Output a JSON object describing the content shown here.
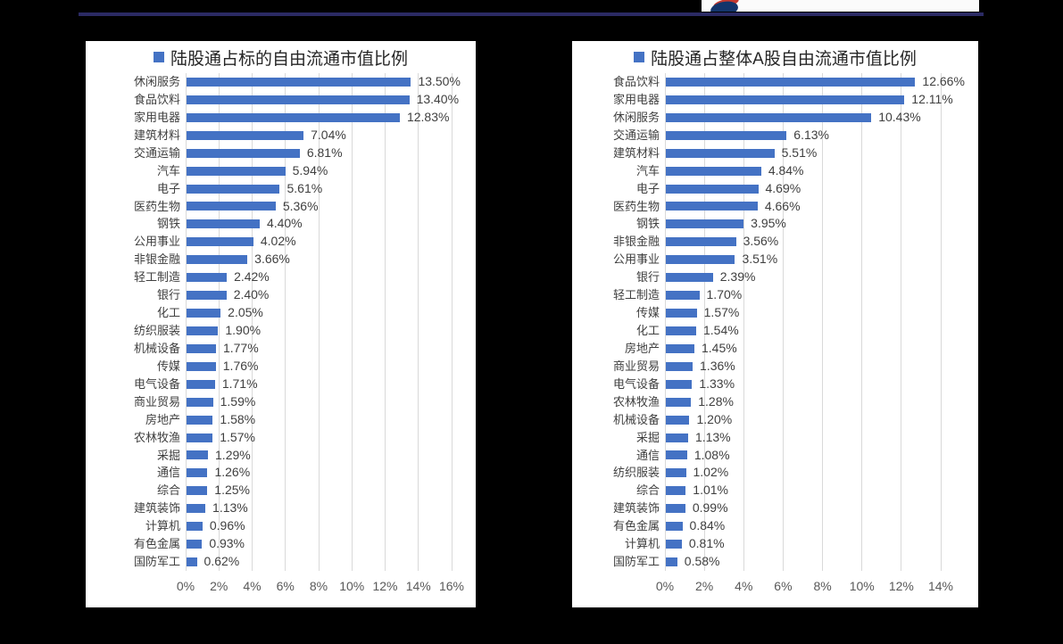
{
  "page": {
    "background_color": "#000000",
    "top_rule_color": "#2b2a64",
    "logo_colors": {
      "navy": "#14356b",
      "red": "#c5392f"
    }
  },
  "chart_data": [
    {
      "type": "bar",
      "orientation": "horizontal",
      "title": "陆股通占标的自由流通市值比例",
      "bar_color": "#4472c4",
      "grid": true,
      "legend_position": "top",
      "xlim": [
        0,
        16
      ],
      "x_ticks": [
        "0%",
        "2%",
        "4%",
        "6%",
        "8%",
        "10%",
        "12%",
        "14%",
        "16%"
      ],
      "categories": [
        "休闲服务",
        "食品饮料",
        "家用电器",
        "建筑材料",
        "交通运输",
        "汽车",
        "电子",
        "医药生物",
        "钢铁",
        "公用事业",
        "非银金融",
        "轻工制造",
        "银行",
        "化工",
        "纺织服装",
        "机械设备",
        "传媒",
        "电气设备",
        "商业贸易",
        "房地产",
        "农林牧渔",
        "采掘",
        "通信",
        "综合",
        "建筑装饰",
        "计算机",
        "有色金属",
        "国防军工"
      ],
      "values": [
        13.5,
        13.4,
        12.83,
        7.04,
        6.81,
        5.94,
        5.61,
        5.36,
        4.4,
        4.02,
        3.66,
        2.42,
        2.4,
        2.05,
        1.9,
        1.77,
        1.76,
        1.71,
        1.59,
        1.58,
        1.57,
        1.29,
        1.26,
        1.25,
        1.13,
        0.96,
        0.93,
        0.62
      ],
      "value_labels": [
        "13.50%",
        "13.40%",
        "12.83%",
        "7.04%",
        "6.81%",
        "5.94%",
        "5.61%",
        "5.36%",
        "4.40%",
        "4.02%",
        "3.66%",
        "2.42%",
        "2.40%",
        "2.05%",
        "1.90%",
        "1.77%",
        "1.76%",
        "1.71%",
        "1.59%",
        "1.58%",
        "1.57%",
        "1.29%",
        "1.26%",
        "1.25%",
        "1.13%",
        "0.96%",
        "0.93%",
        "0.62%"
      ]
    },
    {
      "type": "bar",
      "orientation": "horizontal",
      "title": "陆股通占整体A股自由流通市值比例",
      "bar_color": "#4472c4",
      "grid": true,
      "legend_position": "top",
      "xlim": [
        0,
        14
      ],
      "x_ticks": [
        "0%",
        "2%",
        "4%",
        "6%",
        "8%",
        "10%",
        "12%",
        "14%"
      ],
      "categories": [
        "食品饮料",
        "家用电器",
        "休闲服务",
        "交通运输",
        "建筑材料",
        "汽车",
        "电子",
        "医药生物",
        "钢铁",
        "非银金融",
        "公用事业",
        "银行",
        "轻工制造",
        "传媒",
        "化工",
        "房地产",
        "商业贸易",
        "电气设备",
        "农林牧渔",
        "机械设备",
        "采掘",
        "通信",
        "纺织服装",
        "综合",
        "建筑装饰",
        "有色金属",
        "计算机",
        "国防军工"
      ],
      "values": [
        12.66,
        12.11,
        10.43,
        6.13,
        5.51,
        4.84,
        4.69,
        4.66,
        3.95,
        3.56,
        3.51,
        2.39,
        1.7,
        1.57,
        1.54,
        1.45,
        1.36,
        1.33,
        1.28,
        1.2,
        1.13,
        1.08,
        1.02,
        1.01,
        0.99,
        0.84,
        0.81,
        0.58
      ],
      "value_labels": [
        "12.66%",
        "12.11%",
        "10.43%",
        "6.13%",
        "5.51%",
        "4.84%",
        "4.69%",
        "4.66%",
        "3.95%",
        "3.56%",
        "3.51%",
        "2.39%",
        "1.70%",
        "1.57%",
        "1.54%",
        "1.45%",
        "1.36%",
        "1.33%",
        "1.28%",
        "1.20%",
        "1.13%",
        "1.08%",
        "1.02%",
        "1.01%",
        "0.99%",
        "0.84%",
        "0.81%",
        "0.58%"
      ]
    }
  ]
}
